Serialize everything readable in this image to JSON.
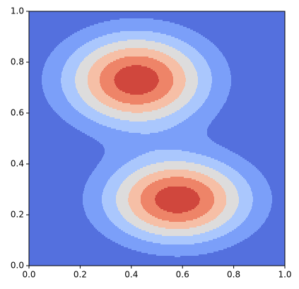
{
  "chart_data": {
    "type": "contour",
    "peaks": [
      {
        "x": 0.42,
        "y": 0.73,
        "sx": 0.19,
        "sy": 0.125,
        "amplitude": 1
      },
      {
        "x": 0.58,
        "y": 0.26,
        "sx": 0.19,
        "sy": 0.115,
        "amplitude": 1
      }
    ],
    "levels": [
      0,
      0.15,
      0.3,
      0.45,
      0.6,
      0.75,
      0.9,
      1.05
    ],
    "colors": [
      "#5470de",
      "#7b9ff9",
      "#aac7fd",
      "#dddcdc",
      "#f6bfa6",
      "#ee8468",
      "#d0473d"
    ],
    "xlim": [
      0,
      1
    ],
    "ylim": [
      0,
      1
    ],
    "xticks": [
      {
        "value": 0,
        "label": "0.0"
      },
      {
        "value": 0.2,
        "label": "0.2"
      },
      {
        "value": 0.4,
        "label": "0.4"
      },
      {
        "value": 0.6,
        "label": "0.6"
      },
      {
        "value": 0.8,
        "label": "0.8"
      },
      {
        "value": 1,
        "label": "1.0"
      }
    ],
    "yticks": [
      {
        "value": 0,
        "label": "0.0"
      },
      {
        "value": 0.2,
        "label": "0.2"
      },
      {
        "value": 0.4,
        "label": "0.4"
      },
      {
        "value": 0.6,
        "label": "0.6"
      },
      {
        "value": 0.8,
        "label": "0.8"
      },
      {
        "value": 1,
        "label": "1.0"
      }
    ]
  }
}
